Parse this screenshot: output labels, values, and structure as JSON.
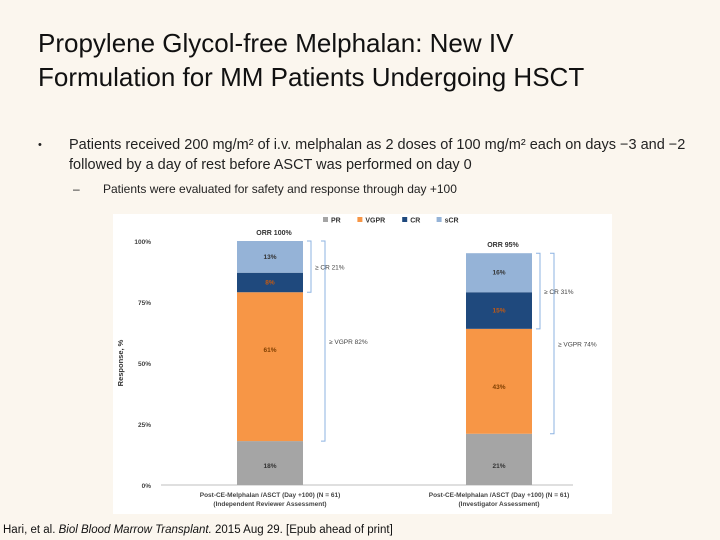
{
  "slide": {
    "title_line1": "Propylene Glycol-free Melphalan: New IV",
    "title_line2": "Formulation for MM Patients Undergoing HSCT",
    "bullet1_marker": "•",
    "bullet1_text": "Patients received 200 mg/m² of i.v. melphalan as 2 doses of 100 mg/m² each on days −3 and −2 followed by a day of rest before ASCT was performed on day 0",
    "bullet2_marker": "–",
    "bullet2_text": "Patients were evaluated for safety and response through day +100"
  },
  "citation": {
    "authors": "Hari, et al.",
    "journal": "Biol Blood Marrow Transplant.",
    "rest": "2015 Aug 29. [Epub ahead of print]"
  },
  "chart_data": {
    "type": "bar",
    "stacked": true,
    "ylabel": "Response, %",
    "ylim": [
      0,
      100
    ],
    "yticks": [
      "0%",
      "25%",
      "50%",
      "75%",
      "100%"
    ],
    "categories": [
      [
        "Post-CE-Melphalan /ASCT (Day +100) (N = 61)",
        "(Independent Reviewer Assessment)"
      ],
      [
        "Post-CE-Melphalan /ASCT (Day +100) (N = 61)",
        "(Investigator Assessment)"
      ]
    ],
    "legend_position": "top",
    "series": [
      {
        "name": "PR",
        "color": "#a5a5a5",
        "values": [
          18,
          21
        ],
        "labels": [
          "18%",
          "21%"
        ]
      },
      {
        "name": "VGPR",
        "color": "#f79646",
        "values": [
          61,
          43
        ],
        "labels": [
          "61%",
          "43%"
        ]
      },
      {
        "name": "CR",
        "color": "#1f497d",
        "values": [
          8,
          15
        ],
        "labels": [
          "8%",
          "15%"
        ]
      },
      {
        "name": "sCR",
        "color": "#95b3d7",
        "values": [
          13,
          16
        ],
        "labels": [
          "13%",
          "16%"
        ]
      }
    ],
    "orr_labels": [
      "ORR 100%",
      "ORR 95%"
    ],
    "brackets": [
      [
        {
          "label": "≥ CR 21%",
          "from": 79,
          "to": 100
        },
        {
          "label": "≥ VGPR 82%",
          "from": 18,
          "to": 100
        }
      ],
      [
        {
          "label": "≥ CR 31%",
          "from": 64,
          "to": 95
        },
        {
          "label": "≥ VGPR 74%",
          "from": 21,
          "to": 95
        }
      ]
    ]
  }
}
